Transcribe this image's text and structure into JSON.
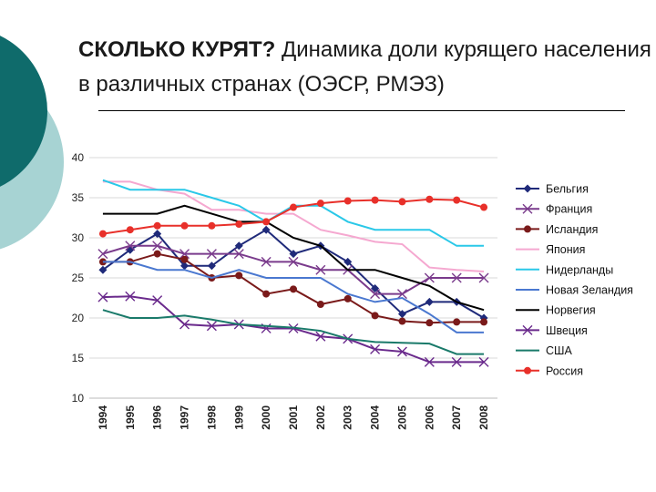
{
  "title": {
    "bold": "СКОЛЬКО КУРЯТ?",
    "rest": " Динамика доли курящего населения в различных странах (ОЭСР, РМЭЗ)"
  },
  "chart_data": {
    "type": "line",
    "x": [
      "1994",
      "1995",
      "1996",
      "1997",
      "1998",
      "1999",
      "2000",
      "2001",
      "2002",
      "2003",
      "2004",
      "2005",
      "2006",
      "2007",
      "2008"
    ],
    "ylim": [
      10,
      40
    ],
    "yticks": [
      10,
      15,
      20,
      25,
      30,
      35,
      40
    ],
    "legend_position": "right",
    "series": [
      {
        "name": "Бельгия",
        "color": "#1f2a7a",
        "marker": "diamond",
        "values": [
          26,
          28.5,
          30.5,
          26.5,
          26.5,
          29,
          31,
          28,
          29,
          27,
          23.7,
          20.5,
          22,
          22,
          20
        ]
      },
      {
        "name": "Франция",
        "color": "#7a3b8c",
        "marker": "x",
        "values": [
          28,
          29,
          29,
          28,
          28,
          28,
          27,
          27,
          26,
          26,
          23,
          23,
          25,
          25,
          25
        ]
      },
      {
        "name": "Исландия",
        "color": "#7a1a1a",
        "marker": "circle",
        "values": [
          27,
          27,
          28,
          27.3,
          25,
          25.3,
          23,
          23.6,
          21.7,
          22.4,
          20.3,
          19.6,
          19.4,
          19.5,
          19.5
        ]
      },
      {
        "name": "Япония",
        "color": "#f5a8d0",
        "marker": "none",
        "values": [
          37,
          37,
          36,
          35.5,
          33.5,
          33.5,
          33,
          33,
          31,
          30.3,
          29.5,
          29.2,
          26.3,
          26,
          25.8
        ]
      },
      {
        "name": "Нидерланды",
        "color": "#2ac8e8",
        "marker": "none",
        "values": [
          37.2,
          36,
          36,
          36,
          35,
          34,
          32,
          34,
          34,
          32,
          31,
          31,
          31,
          29,
          29
        ]
      },
      {
        "name": "Новая Зеландия",
        "color": "#4a78d0",
        "marker": "none",
        "values": [
          27,
          27,
          26,
          26,
          25,
          26,
          25,
          25,
          25,
          23,
          22,
          22.5,
          20.5,
          18.2,
          18.2
        ]
      },
      {
        "name": "Норвегия",
        "color": "#000000",
        "marker": "none",
        "values": [
          33,
          33,
          33,
          34,
          33,
          32,
          32,
          30,
          29,
          26,
          26,
          25,
          24,
          22,
          21
        ]
      },
      {
        "name": "Швеция",
        "color": "#6a2a8c",
        "marker": "x",
        "values": [
          22.6,
          22.7,
          22.2,
          19.2,
          19,
          19.2,
          18.7,
          18.7,
          17.7,
          17.4,
          16.1,
          15.8,
          14.5,
          14.5,
          14.5
        ]
      },
      {
        "name": "США",
        "color": "#1a7a6a",
        "marker": "none",
        "values": [
          21,
          20,
          20,
          20.3,
          19.8,
          19.2,
          19,
          18.8,
          18.4,
          17.4,
          17,
          16.9,
          16.8,
          15.5,
          15.5
        ]
      },
      {
        "name": "Россия",
        "color": "#e8302a",
        "marker": "circle",
        "values": [
          30.5,
          31,
          31.5,
          31.5,
          31.5,
          31.7,
          32,
          33.8,
          34.3,
          34.6,
          34.7,
          34.5,
          34.8,
          34.7,
          33.8
        ]
      }
    ]
  }
}
